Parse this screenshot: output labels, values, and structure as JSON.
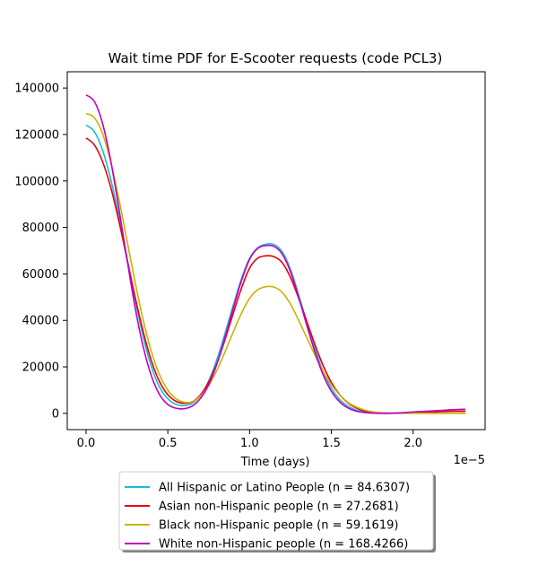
{
  "chart_data": {
    "type": "line",
    "title": "Wait time PDF for E-Scooter  requests (code PCL3)",
    "xlabel": "Time (days)",
    "ylabel": "",
    "x_offset_label": "1e−5",
    "xlim": [
      -0.115,
      2.44
    ],
    "ylim": [
      -7000,
      147000
    ],
    "xticks": [
      0.0,
      0.5,
      1.0,
      1.5,
      2.0
    ],
    "xtick_labels": [
      "0.0",
      "0.5",
      "1.0",
      "1.5",
      "2.0"
    ],
    "yticks": [
      0,
      20000,
      40000,
      60000,
      80000,
      100000,
      120000,
      140000
    ],
    "ytick_labels": [
      "0",
      "20000",
      "40000",
      "60000",
      "80000",
      "100000",
      "120000",
      "140000"
    ],
    "grid": false,
    "legend_position": "bottom-center, outside plot",
    "x": [
      0.0,
      0.05,
      0.1,
      0.15,
      0.2,
      0.25,
      0.3,
      0.35,
      0.4,
      0.45,
      0.5,
      0.55,
      0.6,
      0.65,
      0.7,
      0.75,
      0.8,
      0.85,
      0.9,
      0.95,
      1.0,
      1.05,
      1.1,
      1.15,
      1.2,
      1.25,
      1.3,
      1.35,
      1.4,
      1.45,
      1.5,
      1.55,
      1.6,
      1.65,
      1.7,
      1.75,
      1.8,
      1.85,
      1.9,
      1.95,
      2.0,
      2.05,
      2.1,
      2.15,
      2.2,
      2.25,
      2.3,
      2.32
    ],
    "series": [
      {
        "name": "All Hispanic or Latino People (n = 84.6307)",
        "color": "#17becf",
        "values": [
          124000,
          121300,
          113400,
          101000,
          85000,
          67000,
          49000,
          32800,
          20000,
          11200,
          6300,
          3900,
          3300,
          4400,
          7800,
          14000,
          23200,
          34500,
          46500,
          57900,
          66700,
          71300,
          72800,
          72600,
          69500,
          62000,
          51000,
          39000,
          27700,
          18000,
          10800,
          6000,
          3100,
          1500,
          700,
          300,
          100,
          0,
          100,
          300,
          500,
          700,
          900,
          1100,
          1300,
          1500,
          1700,
          1700
        ]
      },
      {
        "name": "Asian non-Hispanic people (n = 27.2681)",
        "color": "#e8000b",
        "values": [
          118500,
          115600,
          108500,
          97500,
          83000,
          66500,
          50000,
          35000,
          22500,
          13500,
          8000,
          5200,
          4300,
          5000,
          8000,
          13500,
          21500,
          31800,
          43000,
          53800,
          62500,
          66800,
          67800,
          67400,
          64800,
          58500,
          49500,
          39500,
          29500,
          20500,
          13300,
          8100,
          4600,
          2400,
          1100,
          500,
          200,
          100,
          100,
          200,
          400,
          500,
          600,
          700,
          800,
          900,
          900,
          900
        ]
      },
      {
        "name": "Black non-Hispanic people (n = 59.1619)",
        "color": "#c8b400",
        "values": [
          129000,
          127300,
          120500,
          108500,
          92500,
          74500,
          56500,
          40000,
          26500,
          16500,
          10000,
          6300,
          4800,
          5000,
          7500,
          12000,
          18500,
          26500,
          35000,
          43000,
          49500,
          53200,
          54500,
          54300,
          52000,
          47000,
          40000,
          32500,
          25000,
          18000,
          12300,
          8000,
          4800,
          2800,
          1500,
          700,
          300,
          100,
          0,
          0,
          0,
          0,
          0,
          0,
          0,
          0,
          0,
          0
        ]
      },
      {
        "name": "White non-Hispanic people (n = 168.4266)",
        "color": "#c000c8",
        "values": [
          137000,
          134300,
          125000,
          109000,
          88500,
          66500,
          45500,
          28500,
          16000,
          8000,
          3800,
          2200,
          2000,
          3200,
          6500,
          12300,
          21200,
          32800,
          45200,
          57000,
          66300,
          71000,
          72200,
          71800,
          68500,
          61000,
          50000,
          37800,
          26300,
          16500,
          9500,
          5000,
          2400,
          1000,
          400,
          100,
          0,
          0,
          100,
          300,
          600,
          800,
          1000,
          1200,
          1400,
          1600,
          1700,
          1700
        ]
      }
    ]
  }
}
